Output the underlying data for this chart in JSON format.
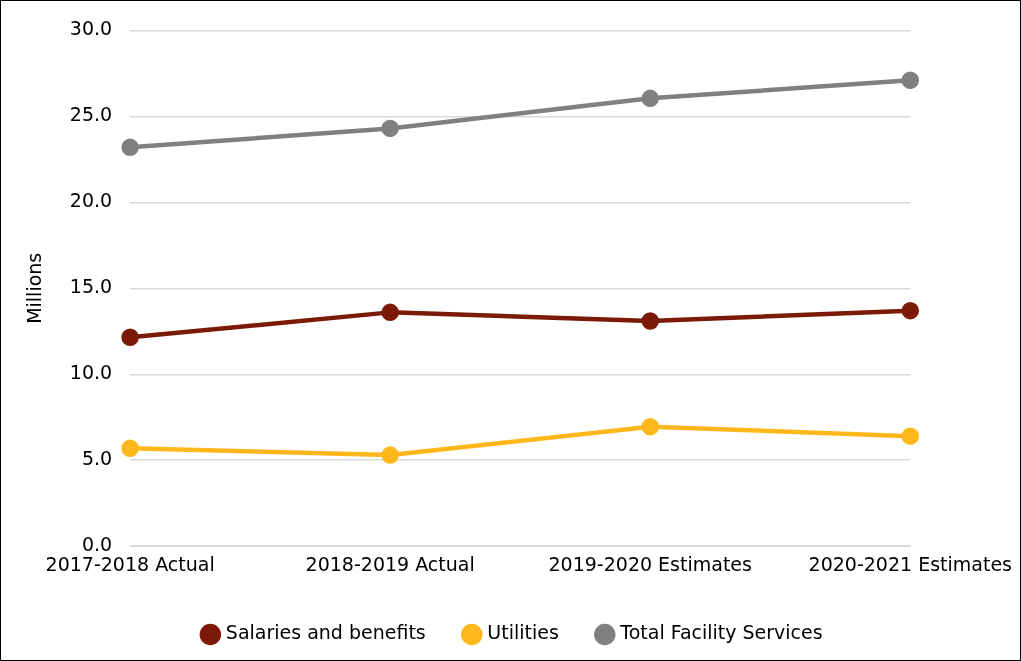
{
  "chart_data": {
    "type": "line",
    "ylabel": "Millions",
    "categories": [
      "2017-2018 Actual",
      "2018-2019 Actual",
      "2019-2020 Estimates",
      "2020-2021 Estimates"
    ],
    "series": [
      {
        "name": "Salaries and benefits",
        "color": "#7b1a06",
        "values": [
          12.15,
          13.6,
          13.1,
          13.7
        ]
      },
      {
        "name": "Utilities",
        "color": "#ffb81c",
        "values": [
          5.7,
          5.3,
          6.95,
          6.4
        ]
      },
      {
        "name": "Total Facility Services",
        "color": "#808080",
        "values": [
          23.2,
          24.3,
          26.05,
          27.1
        ]
      }
    ],
    "ylim": [
      0,
      30
    ],
    "yticks": [
      {
        "value": 0,
        "label": "0.0"
      },
      {
        "value": 5,
        "label": "5.0"
      },
      {
        "value": 10,
        "label": "10.0"
      },
      {
        "value": 15,
        "label": "15.0"
      },
      {
        "value": 20,
        "label": "20.0"
      },
      {
        "value": 25,
        "label": "25.0"
      },
      {
        "value": 30,
        "label": "30.0"
      }
    ],
    "grid": "y",
    "legend": "bottom",
    "marker": "circle",
    "line_style": "solid"
  }
}
